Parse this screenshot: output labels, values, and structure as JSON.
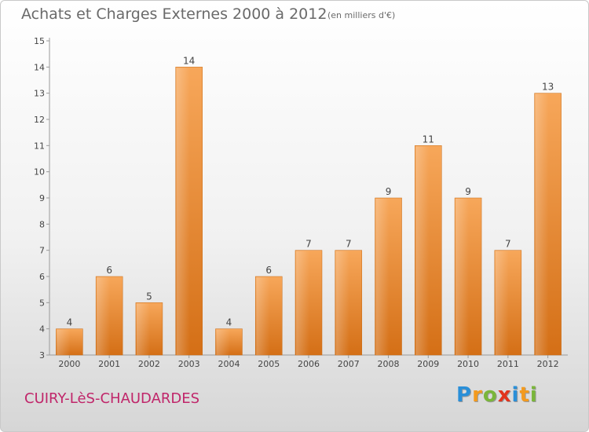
{
  "header": {
    "title": "Achats et Charges Externes 2000 à 2012",
    "subtitle": "(en milliers d'€)"
  },
  "footer": {
    "commune": "CUIRY-LèS-CHAUDARDES",
    "logo_letters": [
      {
        "ch": "P",
        "color": "#2a8fd8"
      },
      {
        "ch": "r",
        "color": "#f39a1e"
      },
      {
        "ch": "o",
        "color": "#7ab63a"
      },
      {
        "ch": "x",
        "color": "#e2341d"
      },
      {
        "ch": "i",
        "color": "#2a8fd8"
      },
      {
        "ch": "t",
        "color": "#f39a1e"
      },
      {
        "ch": "i",
        "color": "#7ab63a"
      }
    ]
  },
  "chart_data": {
    "type": "bar",
    "categories": [
      "2000",
      "2001",
      "2002",
      "2003",
      "2004",
      "2005",
      "2006",
      "2007",
      "2008",
      "2009",
      "2010",
      "2011",
      "2012"
    ],
    "values": [
      4,
      6,
      5,
      14,
      4,
      6,
      7,
      7,
      9,
      11,
      9,
      7,
      13
    ],
    "title": "Achats et Charges Externes 2000 à 2012",
    "ylim": [
      3,
      15
    ],
    "yticks": [
      3,
      4,
      5,
      6,
      7,
      8,
      9,
      10,
      11,
      12,
      13,
      14,
      15
    ],
    "grid": false,
    "bar_color": "#f08a2c"
  }
}
